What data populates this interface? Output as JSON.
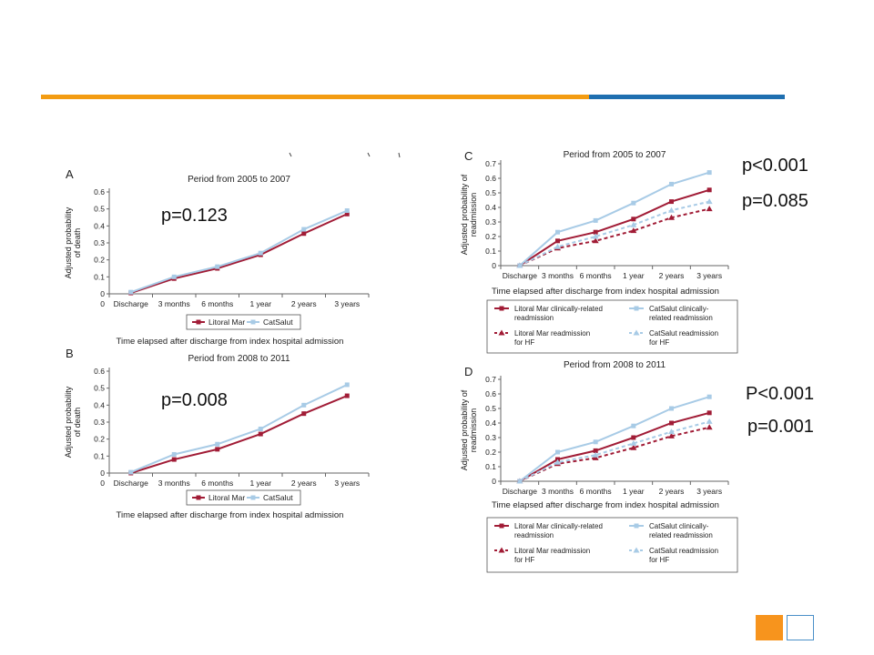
{
  "colors": {
    "orange": "#f39c12",
    "blue": "#1f6fb0",
    "litoral": "#a11c36",
    "catsalut": "#a8cbe6"
  },
  "x_categories": [
    "Discharge",
    "3 months",
    "6 months",
    "1 year",
    "2 years",
    "3 years"
  ],
  "p_values": {
    "a": "p=0.123",
    "b": "p=0.008",
    "c1": "p<0.001",
    "c2": "p=0.085",
    "d1": "P<0.001",
    "d2": "p=0.001"
  },
  "chart_data": [
    {
      "id": "A",
      "type": "line",
      "title": "Period from 2005 to 2007",
      "ylabel": "Adjusted probability of death",
      "ylabel_lines": [
        "Adjusted probability",
        "of death"
      ],
      "xlabel": "Time elapsed after discharge from index hospital admission",
      "categories": [
        "Discharge",
        "3 months",
        "6 months",
        "1 year",
        "2 years",
        "3 years"
      ],
      "x_zero_label": "0",
      "ylim": [
        0,
        0.6
      ],
      "yticks": [
        0,
        0.1,
        0.2,
        0.3,
        0.4,
        0.5,
        0.6
      ],
      "ytick_labels": [
        "0",
        "0.1",
        "0.2",
        "0.3",
        "0.4",
        "0.5",
        "0.6"
      ],
      "legend": "bottom",
      "series": [
        {
          "name": "Litoral Mar",
          "color": "#a11c36",
          "dashed": false,
          "marker": "square",
          "values": [
            0.005,
            0.09,
            0.15,
            0.23,
            0.355,
            0.47
          ]
        },
        {
          "name": "CatSalut",
          "color": "#a8cbe6",
          "dashed": false,
          "marker": "square",
          "values": [
            0.01,
            0.1,
            0.16,
            0.24,
            0.38,
            0.49
          ]
        }
      ]
    },
    {
      "id": "B",
      "type": "line",
      "title": "Period from 2008 to 2011",
      "ylabel": "Adjusted probability of death",
      "ylabel_lines": [
        "Adjusted probability",
        "of death"
      ],
      "xlabel": "Time elapsed after discharge from index hospital admission",
      "categories": [
        "Discharge",
        "3 months",
        "6 months",
        "1 year",
        "2 years",
        "3 years"
      ],
      "x_zero_label": "0",
      "ylim": [
        0,
        0.6
      ],
      "yticks": [
        0,
        0.1,
        0.2,
        0.3,
        0.4,
        0.5,
        0.6
      ],
      "ytick_labels": [
        "0",
        "0.1",
        "0.2",
        "0.3",
        "0.4",
        "0.5",
        "0.6"
      ],
      "legend": "bottom",
      "series": [
        {
          "name": "Litoral Mar",
          "color": "#a11c36",
          "dashed": false,
          "marker": "square",
          "values": [
            0.0,
            0.08,
            0.14,
            0.23,
            0.35,
            0.455
          ]
        },
        {
          "name": "CatSalut",
          "color": "#a8cbe6",
          "dashed": false,
          "marker": "square",
          "values": [
            0.005,
            0.11,
            0.17,
            0.26,
            0.4,
            0.52
          ]
        }
      ]
    },
    {
      "id": "C",
      "type": "line",
      "title": "Period from 2005 to 2007",
      "ylabel": "Adjusted probability of readmission",
      "ylabel_lines": [
        "Adjusted probability of",
        "readmission"
      ],
      "xlabel": "Time elapsed after discharge from index hospital admission",
      "categories": [
        "Discharge",
        "3 months",
        "6 months",
        "1 year",
        "2 years",
        "3 years"
      ],
      "x_zero_label": "",
      "ylim": [
        0,
        0.7
      ],
      "yticks": [
        0,
        0.1,
        0.2,
        0.3,
        0.4,
        0.5,
        0.6,
        0.7
      ],
      "ytick_labels": [
        "0",
        "0.1",
        "0.2",
        "0.3",
        "0.4",
        "0.5",
        "0.6",
        "0.7"
      ],
      "legend": "bottom",
      "series": [
        {
          "name": "Litoral Mar clinically-related readmission",
          "label_lines": [
            "Litoral Mar clinically-related",
            "readmission"
          ],
          "color": "#a11c36",
          "dashed": false,
          "marker": "square",
          "values": [
            0.0,
            0.17,
            0.23,
            0.32,
            0.44,
            0.52
          ]
        },
        {
          "name": "CatSalut clinically-related readmission",
          "label_lines": [
            "CatSalut clinically-",
            "related readmission"
          ],
          "color": "#a8cbe6",
          "dashed": false,
          "marker": "square",
          "values": [
            0.0,
            0.23,
            0.31,
            0.43,
            0.56,
            0.64
          ]
        },
        {
          "name": "Litoral Mar readmission for HF",
          "label_lines": [
            "Litoral Mar readmission",
            "for HF"
          ],
          "color": "#a11c36",
          "dashed": true,
          "marker": "triangle",
          "values": [
            0.0,
            0.12,
            0.17,
            0.24,
            0.33,
            0.39
          ]
        },
        {
          "name": "CatSalut readmission for HF",
          "label_lines": [
            "CatSalut readmission",
            "for HF"
          ],
          "color": "#a8cbe6",
          "dashed": true,
          "marker": "triangle",
          "values": [
            0.0,
            0.13,
            0.2,
            0.28,
            0.38,
            0.44
          ]
        }
      ]
    },
    {
      "id": "D",
      "type": "line",
      "title": "Period from 2008 to 2011",
      "ylabel": "Adjusted probability of readmission",
      "ylabel_lines": [
        "Adjusted probability of",
        "readmission"
      ],
      "xlabel": "Time elapsed after discharge from index hospital admission",
      "categories": [
        "Discharge",
        "3 months",
        "6 months",
        "1 year",
        "2 years",
        "3 years"
      ],
      "x_zero_label": "",
      "ylim": [
        0,
        0.7
      ],
      "yticks": [
        0,
        0.1,
        0.2,
        0.3,
        0.4,
        0.5,
        0.6,
        0.7
      ],
      "ytick_labels": [
        "0",
        "0.1",
        "0.2",
        "0.3",
        "0.4",
        "0.5",
        "0.6",
        "0.7"
      ],
      "legend": "bottom",
      "series": [
        {
          "name": "Litoral Mar clinically-related readmission",
          "label_lines": [
            "Litoral Mar clinically-related",
            "readmission"
          ],
          "color": "#a11c36",
          "dashed": false,
          "marker": "square",
          "values": [
            0.0,
            0.15,
            0.21,
            0.3,
            0.4,
            0.47
          ]
        },
        {
          "name": "CatSalut clinically-related readmission",
          "label_lines": [
            "CatSalut clinically-",
            "related readmission"
          ],
          "color": "#a8cbe6",
          "dashed": false,
          "marker": "square",
          "values": [
            0.0,
            0.2,
            0.27,
            0.38,
            0.5,
            0.58
          ]
        },
        {
          "name": "Litoral Mar readmission for HF",
          "label_lines": [
            "Litoral Mar readmission",
            "for HF"
          ],
          "color": "#a11c36",
          "dashed": true,
          "marker": "triangle",
          "values": [
            0.0,
            0.12,
            0.16,
            0.23,
            0.31,
            0.37
          ]
        },
        {
          "name": "CatSalut readmission for HF",
          "label_lines": [
            "CatSalut readmission",
            "for HF"
          ],
          "color": "#a8cbe6",
          "dashed": true,
          "marker": "triangle",
          "values": [
            0.0,
            0.13,
            0.18,
            0.26,
            0.34,
            0.41
          ]
        }
      ]
    }
  ]
}
